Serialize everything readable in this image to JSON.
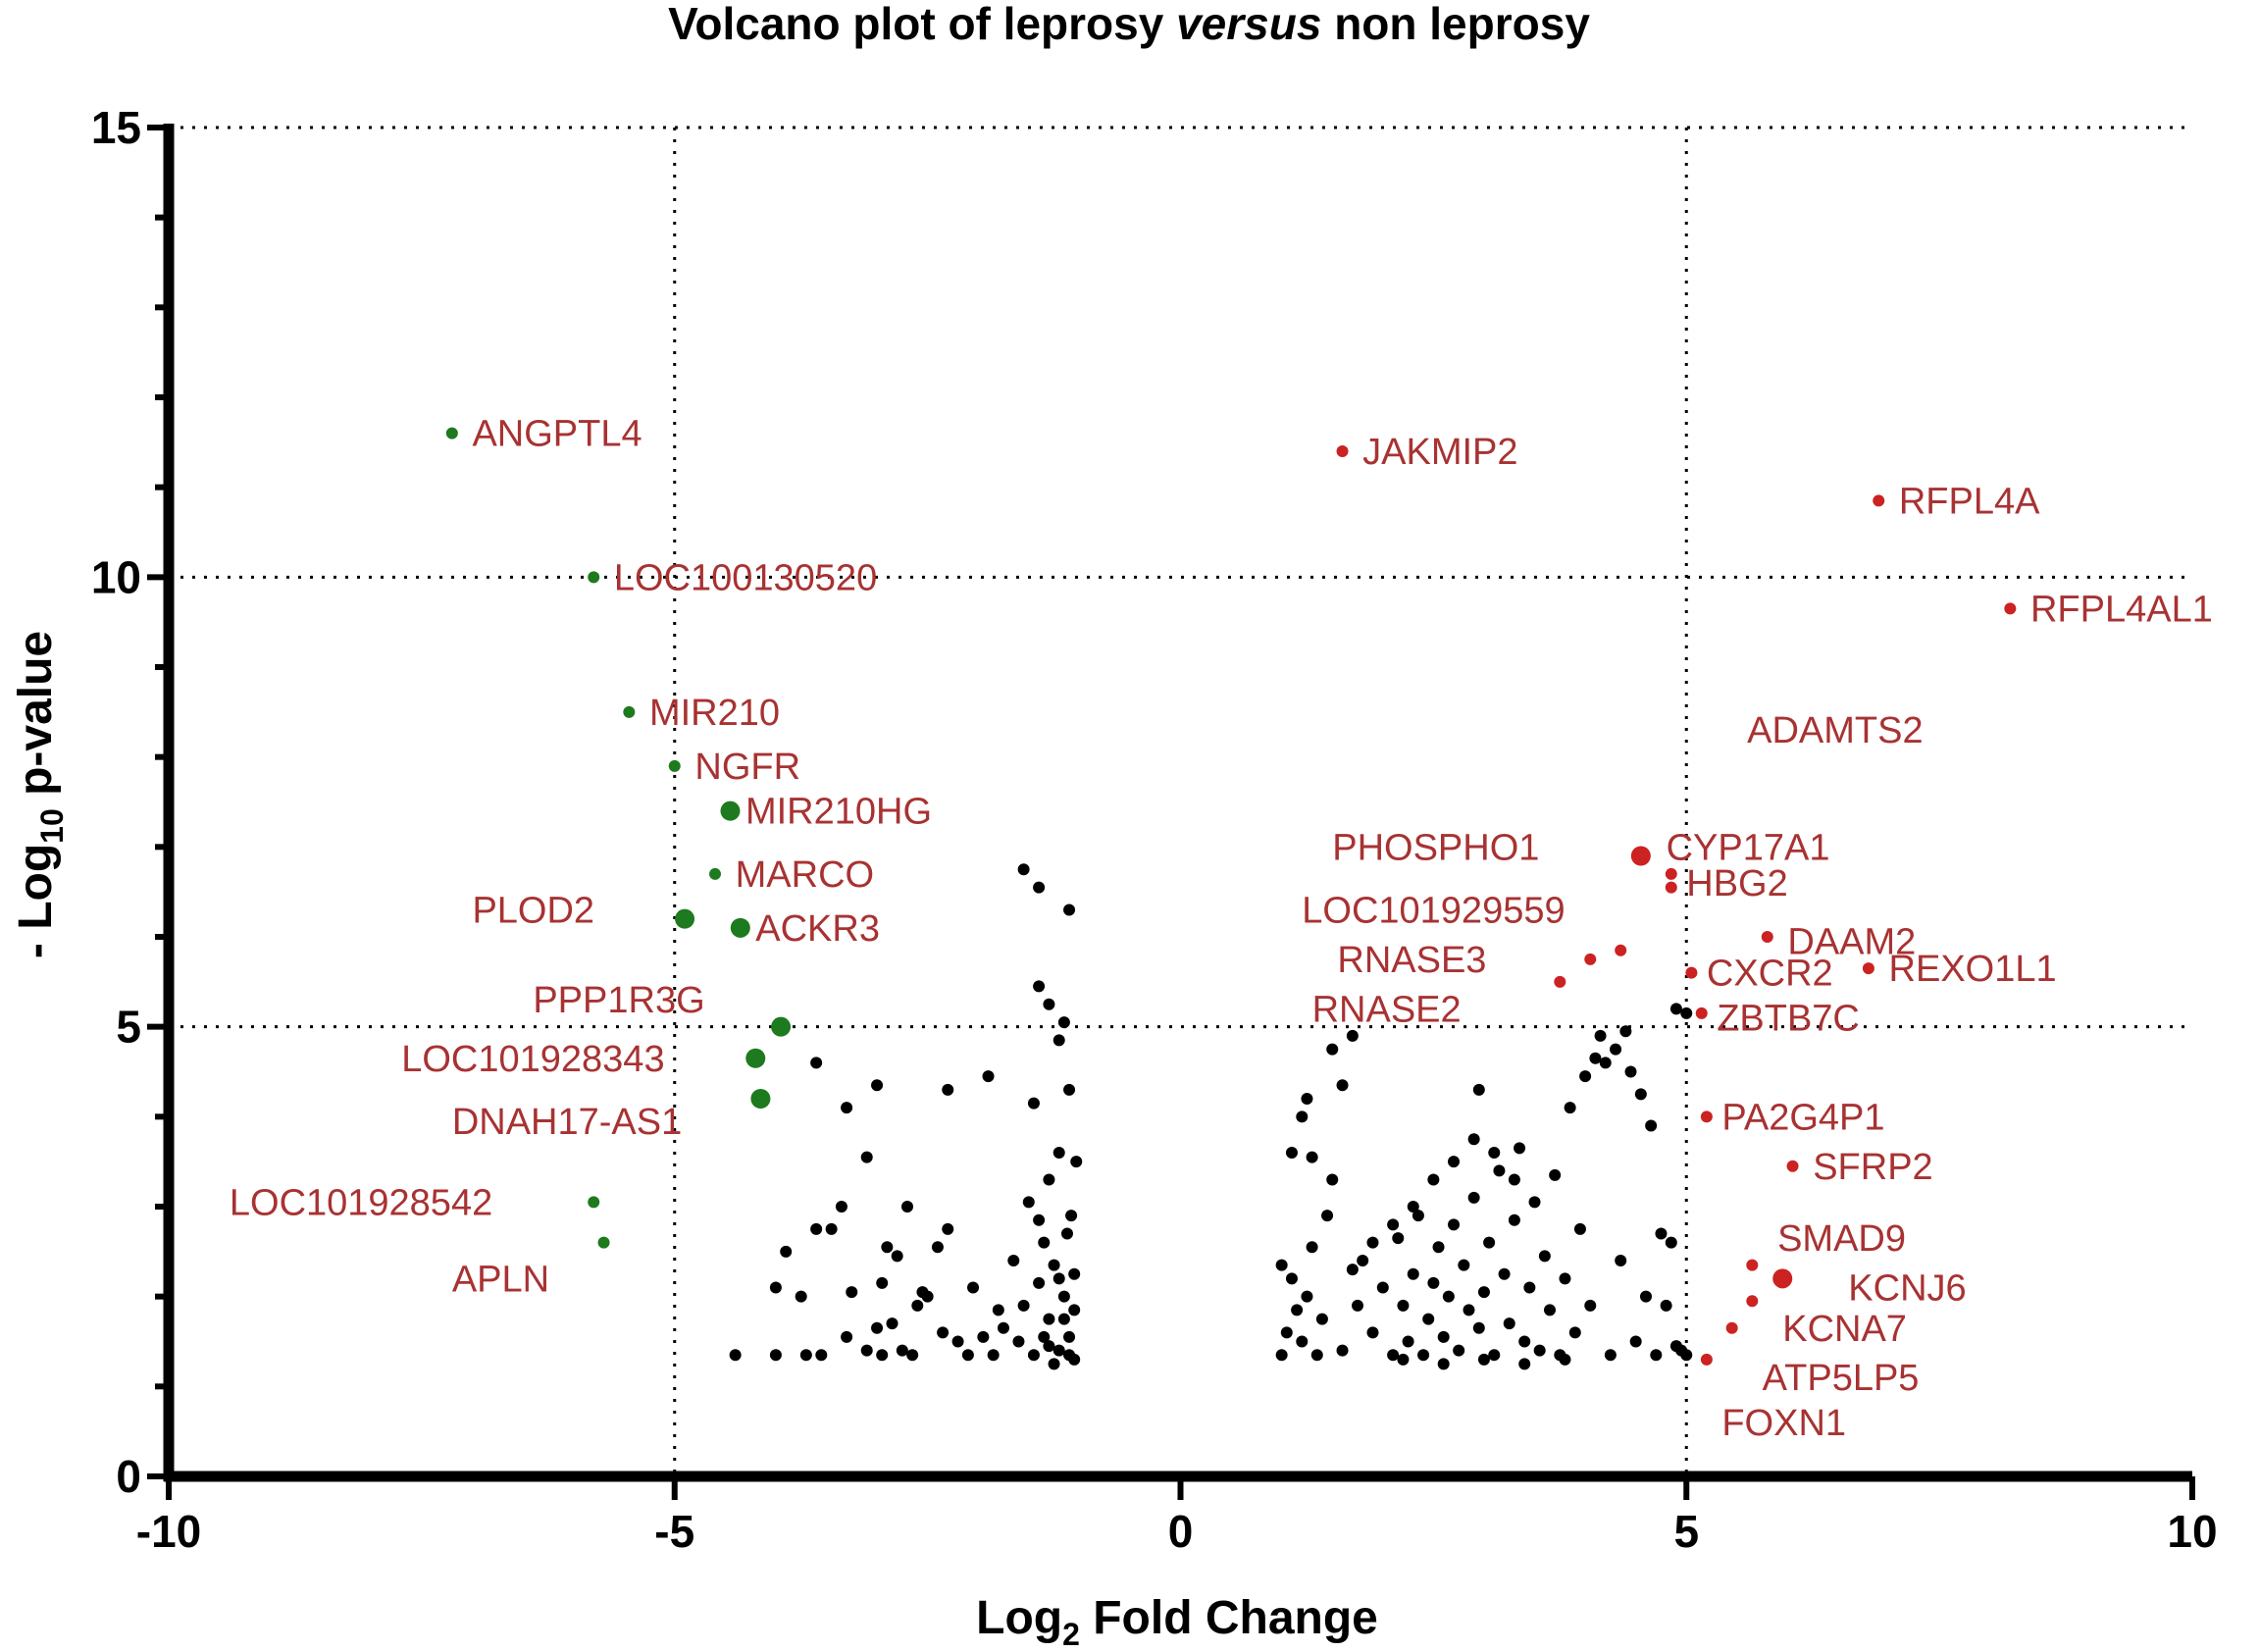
{
  "chart_data": {
    "type": "scatter",
    "title": {
      "before": "Volcano plot of leprosy ",
      "italic": "versus",
      "after": " non leprosy"
    },
    "xlabel": {
      "main": "Log",
      "sub": "2",
      "rest": " Fold Change"
    },
    "ylabel": {
      "main": "- Log",
      "sub": "10",
      "rest": " p-value"
    },
    "xlim": [
      -10,
      10
    ],
    "ylim": [
      0,
      15
    ],
    "x_ticks": [
      -10,
      -5,
      0,
      5,
      10
    ],
    "x_tick_labels": [
      "-10",
      "-5",
      "0",
      "5",
      "10"
    ],
    "y_ticks": [
      0,
      5,
      10,
      15
    ],
    "y_tick_labels": [
      "0",
      "5",
      "10",
      "15"
    ],
    "reference_lines": {
      "vertical_x": [
        -5,
        5
      ],
      "horizontal_y": [
        5,
        10,
        15
      ],
      "style": "dotted"
    },
    "colors": {
      "down": "#1e7a1e",
      "up": "#cc2222",
      "ns": "#000000",
      "label": "#a83232",
      "axis": "#000000"
    },
    "downregulated": [
      {
        "name": "ANGPTL4",
        "x": -7.2,
        "y": 11.6,
        "size": "small",
        "label_pos": [
          -7.0,
          11.6
        ]
      },
      {
        "name": "LOC100130520",
        "x": -5.8,
        "y": 10.0,
        "size": "small",
        "label_pos": [
          -5.6,
          10.0
        ]
      },
      {
        "name": "MIR210",
        "x": -5.45,
        "y": 8.5,
        "size": "small",
        "label_pos": [
          -5.25,
          8.5
        ]
      },
      {
        "name": "NGFR",
        "x": -5.0,
        "y": 7.9,
        "size": "small",
        "label_pos": [
          -4.8,
          7.9
        ]
      },
      {
        "name": "MIR210HG",
        "x": -4.45,
        "y": 7.4,
        "size": "large",
        "label_pos": [
          -4.3,
          7.4
        ]
      },
      {
        "name": "MARCO",
        "x": -4.6,
        "y": 6.7,
        "size": "small",
        "label_pos": [
          -4.4,
          6.7
        ]
      },
      {
        "name": "PLOD2",
        "x": -4.9,
        "y": 6.2,
        "size": "large",
        "label_pos": [
          -7.0,
          6.3
        ]
      },
      {
        "name": "ACKR3",
        "x": -4.35,
        "y": 6.1,
        "size": "large",
        "label_pos": [
          -4.2,
          6.1
        ]
      },
      {
        "name": "PPP1R3G",
        "x": -3.95,
        "y": 5.0,
        "size": "large",
        "label_pos": [
          -6.4,
          5.3
        ]
      },
      {
        "name": "LOC101928343",
        "x": -4.2,
        "y": 4.65,
        "size": "large",
        "label_pos": [
          -7.7,
          4.65
        ]
      },
      {
        "name": "DNAH17-AS1",
        "x": -4.15,
        "y": 4.2,
        "size": "large",
        "label_pos": [
          -7.2,
          3.95
        ]
      },
      {
        "name": "LOC101928542",
        "x": -5.8,
        "y": 3.05,
        "size": "small",
        "label_pos": [
          -9.4,
          3.05
        ]
      },
      {
        "name": "APLN",
        "x": -5.7,
        "y": 2.6,
        "size": "small",
        "label_pos": [
          -7.2,
          2.2
        ]
      }
    ],
    "upregulated": [
      {
        "name": "JAKMIP2",
        "x": 1.6,
        "y": 11.4,
        "size": "small",
        "label_pos": [
          1.8,
          11.4
        ]
      },
      {
        "name": "RFPL4A",
        "x": 6.9,
        "y": 10.85,
        "size": "small",
        "label_pos": [
          7.1,
          10.85
        ]
      },
      {
        "name": "RFPL4AL1",
        "x": 8.2,
        "y": 9.65,
        "size": "small",
        "label_pos": [
          8.4,
          9.65
        ]
      },
      {
        "name": "ADAMTS2",
        "x": null,
        "y": null,
        "size": "none",
        "label_pos": [
          5.6,
          8.3
        ]
      },
      {
        "name": "CYP17A1",
        "x": 4.55,
        "y": 6.9,
        "size": "large",
        "label_pos": [
          4.8,
          7.0
        ]
      },
      {
        "name": "PHOSPHO1",
        "x": 4.85,
        "y": 6.7,
        "size": "small",
        "label_pos": [
          1.5,
          7.0
        ]
      },
      {
        "name": "HBG2",
        "x": 4.85,
        "y": 6.55,
        "size": "small",
        "label_pos": [
          5.0,
          6.6
        ]
      },
      {
        "name": "LOC101929559",
        "x": 4.35,
        "y": 5.85,
        "size": "small",
        "label_pos": [
          1.2,
          6.3
        ]
      },
      {
        "name": "DAAM2",
        "x": 5.8,
        "y": 6.0,
        "size": "small",
        "label_pos": [
          6.0,
          5.95
        ]
      },
      {
        "name": "RNASE3",
        "x": 4.05,
        "y": 5.75,
        "size": "small",
        "label_pos": [
          1.55,
          5.75
        ]
      },
      {
        "name": "CXCR2",
        "x": 5.05,
        "y": 5.6,
        "size": "small",
        "label_pos": [
          5.2,
          5.6
        ]
      },
      {
        "name": "REXO1L1",
        "x": 6.8,
        "y": 5.65,
        "size": "small",
        "label_pos": [
          7.0,
          5.65
        ]
      },
      {
        "name": "RNASE2",
        "x": 3.75,
        "y": 5.5,
        "size": "small",
        "label_pos": [
          1.3,
          5.2
        ]
      },
      {
        "name": "ZBTB7C",
        "x": 5.15,
        "y": 5.15,
        "size": "small",
        "label_pos": [
          5.3,
          5.1
        ]
      },
      {
        "name": "PA2G4P1",
        "x": 5.2,
        "y": 4.0,
        "size": "small",
        "label_pos": [
          5.35,
          4.0
        ]
      },
      {
        "name": "SFRP2",
        "x": 6.05,
        "y": 3.45,
        "size": "small",
        "label_pos": [
          6.25,
          3.45
        ]
      },
      {
        "name": "SMAD9",
        "x": 5.65,
        "y": 2.35,
        "size": "small",
        "label_pos": [
          5.9,
          2.65
        ]
      },
      {
        "name": "KCNJ6",
        "x": 5.95,
        "y": 2.2,
        "size": "large",
        "label_pos": [
          6.6,
          2.1
        ]
      },
      {
        "name": "KCNA7",
        "x": 5.65,
        "y": 1.95,
        "size": "small",
        "label_pos": [
          5.95,
          1.65
        ]
      },
      {
        "name": "ATP5LP5",
        "x": 5.45,
        "y": 1.65,
        "size": "small",
        "label_pos": [
          5.75,
          1.1
        ]
      },
      {
        "name": "FOXN1",
        "x": 5.2,
        "y": 1.3,
        "size": "small",
        "label_pos": [
          5.35,
          0.6
        ]
      }
    ],
    "not_significant": [
      [
        -4.4,
        1.35
      ],
      [
        -4.0,
        1.35
      ],
      [
        -3.7,
        1.35
      ],
      [
        -3.55,
        1.35
      ],
      [
        -4.0,
        2.1
      ],
      [
        -3.75,
        2.0
      ],
      [
        -3.9,
        2.5
      ],
      [
        -3.6,
        2.75
      ],
      [
        -3.45,
        2.75
      ],
      [
        -3.35,
        3.0
      ],
      [
        -3.1,
        3.55
      ],
      [
        -3.25,
        2.05
      ],
      [
        -3.3,
        1.55
      ],
      [
        -3.0,
        1.65
      ],
      [
        -2.95,
        2.15
      ],
      [
        -2.8,
        2.45
      ],
      [
        -2.85,
        1.7
      ],
      [
        -2.75,
        1.4
      ],
      [
        -2.65,
        1.35
      ],
      [
        -2.55,
        2.05
      ],
      [
        -2.4,
        2.55
      ],
      [
        -2.3,
        2.75
      ],
      [
        -2.2,
        1.5
      ],
      [
        -2.1,
        1.35
      ],
      [
        -2.35,
        1.6
      ],
      [
        -2.6,
        1.9
      ],
      [
        -2.7,
        3.0
      ],
      [
        -2.9,
        2.55
      ],
      [
        -1.95,
        1.55
      ],
      [
        -1.85,
        1.35
      ],
      [
        -1.8,
        1.85
      ],
      [
        -1.75,
        1.65
      ],
      [
        -1.6,
        1.5
      ],
      [
        -1.55,
        1.9
      ],
      [
        -1.45,
        1.35
      ],
      [
        -1.4,
        2.15
      ],
      [
        -1.35,
        1.55
      ],
      [
        -1.3,
        1.75
      ],
      [
        -1.25,
        2.35
      ],
      [
        -1.2,
        1.4
      ],
      [
        -1.15,
        2.0
      ],
      [
        -1.12,
        2.7
      ],
      [
        -1.1,
        1.55
      ],
      [
        -1.08,
        2.9
      ],
      [
        -1.05,
        1.85
      ],
      [
        -1.03,
        3.5
      ],
      [
        -1.3,
        3.3
      ],
      [
        -1.4,
        2.85
      ],
      [
        -1.5,
        3.05
      ],
      [
        -1.2,
        3.6
      ],
      [
        -1.45,
        4.15
      ],
      [
        -1.4,
        5.45
      ],
      [
        -1.3,
        5.25
      ],
      [
        -1.15,
        5.05
      ],
      [
        -1.2,
        4.85
      ],
      [
        -1.1,
        4.3
      ],
      [
        -1.55,
        6.75
      ],
      [
        -1.4,
        6.55
      ],
      [
        -1.1,
        6.3
      ],
      [
        -1.1,
        1.35
      ],
      [
        -1.2,
        2.2
      ],
      [
        -1.3,
        1.45
      ],
      [
        -1.05,
        2.25
      ],
      [
        -1.15,
        1.75
      ],
      [
        -1.35,
        2.6
      ],
      [
        -3.6,
        4.6
      ],
      [
        -3.3,
        4.1
      ],
      [
        -3.0,
        4.35
      ],
      [
        -2.3,
        4.3
      ],
      [
        -1.9,
        4.45
      ],
      [
        -2.5,
        2.0
      ],
      [
        -2.05,
        2.1
      ],
      [
        -1.65,
        2.4
      ],
      [
        -3.1,
        1.4
      ],
      [
        -2.95,
        1.35
      ],
      [
        -1.25,
        1.25
      ],
      [
        -1.05,
        1.3
      ],
      [
        1.0,
        1.35
      ],
      [
        1.05,
        1.6
      ],
      [
        1.1,
        2.2
      ],
      [
        1.0,
        2.35
      ],
      [
        1.15,
        1.85
      ],
      [
        1.2,
        1.5
      ],
      [
        1.25,
        2.0
      ],
      [
        1.3,
        2.55
      ],
      [
        1.35,
        1.35
      ],
      [
        1.4,
        1.75
      ],
      [
        1.45,
        2.9
      ],
      [
        1.5,
        3.3
      ],
      [
        1.3,
        3.55
      ],
      [
        1.1,
        3.6
      ],
      [
        1.2,
        4.0
      ],
      [
        1.25,
        4.2
      ],
      [
        1.6,
        4.35
      ],
      [
        1.5,
        4.75
      ],
      [
        1.7,
        4.9
      ],
      [
        1.6,
        1.4
      ],
      [
        1.75,
        1.9
      ],
      [
        1.8,
        2.4
      ],
      [
        1.9,
        1.6
      ],
      [
        2.0,
        2.1
      ],
      [
        2.1,
        1.35
      ],
      [
        2.15,
        2.65
      ],
      [
        2.2,
        1.9
      ],
      [
        2.25,
        1.5
      ],
      [
        2.3,
        2.25
      ],
      [
        2.35,
        2.9
      ],
      [
        2.4,
        1.35
      ],
      [
        2.45,
        1.75
      ],
      [
        2.5,
        2.15
      ],
      [
        2.55,
        2.55
      ],
      [
        2.6,
        1.55
      ],
      [
        2.65,
        2.0
      ],
      [
        2.7,
        2.8
      ],
      [
        2.75,
        1.4
      ],
      [
        2.8,
        2.35
      ],
      [
        2.85,
        1.85
      ],
      [
        2.9,
        3.1
      ],
      [
        2.95,
        1.65
      ],
      [
        3.0,
        2.05
      ],
      [
        3.05,
        2.6
      ],
      [
        3.1,
        1.35
      ],
      [
        3.15,
        3.4
      ],
      [
        3.2,
        2.25
      ],
      [
        3.25,
        1.7
      ],
      [
        3.3,
        2.85
      ],
      [
        3.35,
        3.65
      ],
      [
        3.4,
        1.5
      ],
      [
        3.45,
        2.1
      ],
      [
        3.5,
        3.05
      ],
      [
        3.55,
        1.4
      ],
      [
        3.6,
        2.45
      ],
      [
        3.65,
        1.85
      ],
      [
        3.7,
        3.35
      ],
      [
        3.75,
        1.35
      ],
      [
        3.8,
        2.2
      ],
      [
        3.85,
        4.1
      ],
      [
        3.9,
        1.6
      ],
      [
        3.95,
        2.75
      ],
      [
        4.0,
        4.45
      ],
      [
        4.05,
        1.9
      ],
      [
        4.1,
        4.65
      ],
      [
        4.15,
        4.9
      ],
      [
        4.2,
        4.6
      ],
      [
        4.25,
        1.35
      ],
      [
        4.3,
        4.75
      ],
      [
        4.35,
        2.4
      ],
      [
        4.4,
        4.95
      ],
      [
        4.45,
        4.5
      ],
      [
        4.5,
        1.5
      ],
      [
        4.55,
        4.25
      ],
      [
        4.6,
        2.0
      ],
      [
        4.65,
        3.9
      ],
      [
        4.7,
        1.35
      ],
      [
        4.75,
        2.7
      ],
      [
        4.8,
        1.9
      ],
      [
        4.85,
        2.6
      ],
      [
        4.9,
        1.45
      ],
      [
        4.95,
        1.4
      ],
      [
        5.0,
        1.35
      ],
      [
        4.9,
        5.2
      ],
      [
        5.0,
        5.15
      ],
      [
        2.6,
        1.25
      ],
      [
        3.0,
        1.3
      ],
      [
        2.2,
        1.3
      ],
      [
        3.4,
        1.25
      ],
      [
        3.8,
        1.3
      ],
      [
        2.7,
        3.5
      ],
      [
        2.9,
        3.75
      ],
      [
        3.1,
        3.6
      ],
      [
        3.3,
        3.3
      ],
      [
        2.5,
        3.3
      ],
      [
        2.3,
        3.0
      ],
      [
        2.1,
        2.8
      ],
      [
        1.9,
        2.6
      ],
      [
        1.7,
        2.3
      ],
      [
        2.95,
        4.3
      ]
    ]
  }
}
